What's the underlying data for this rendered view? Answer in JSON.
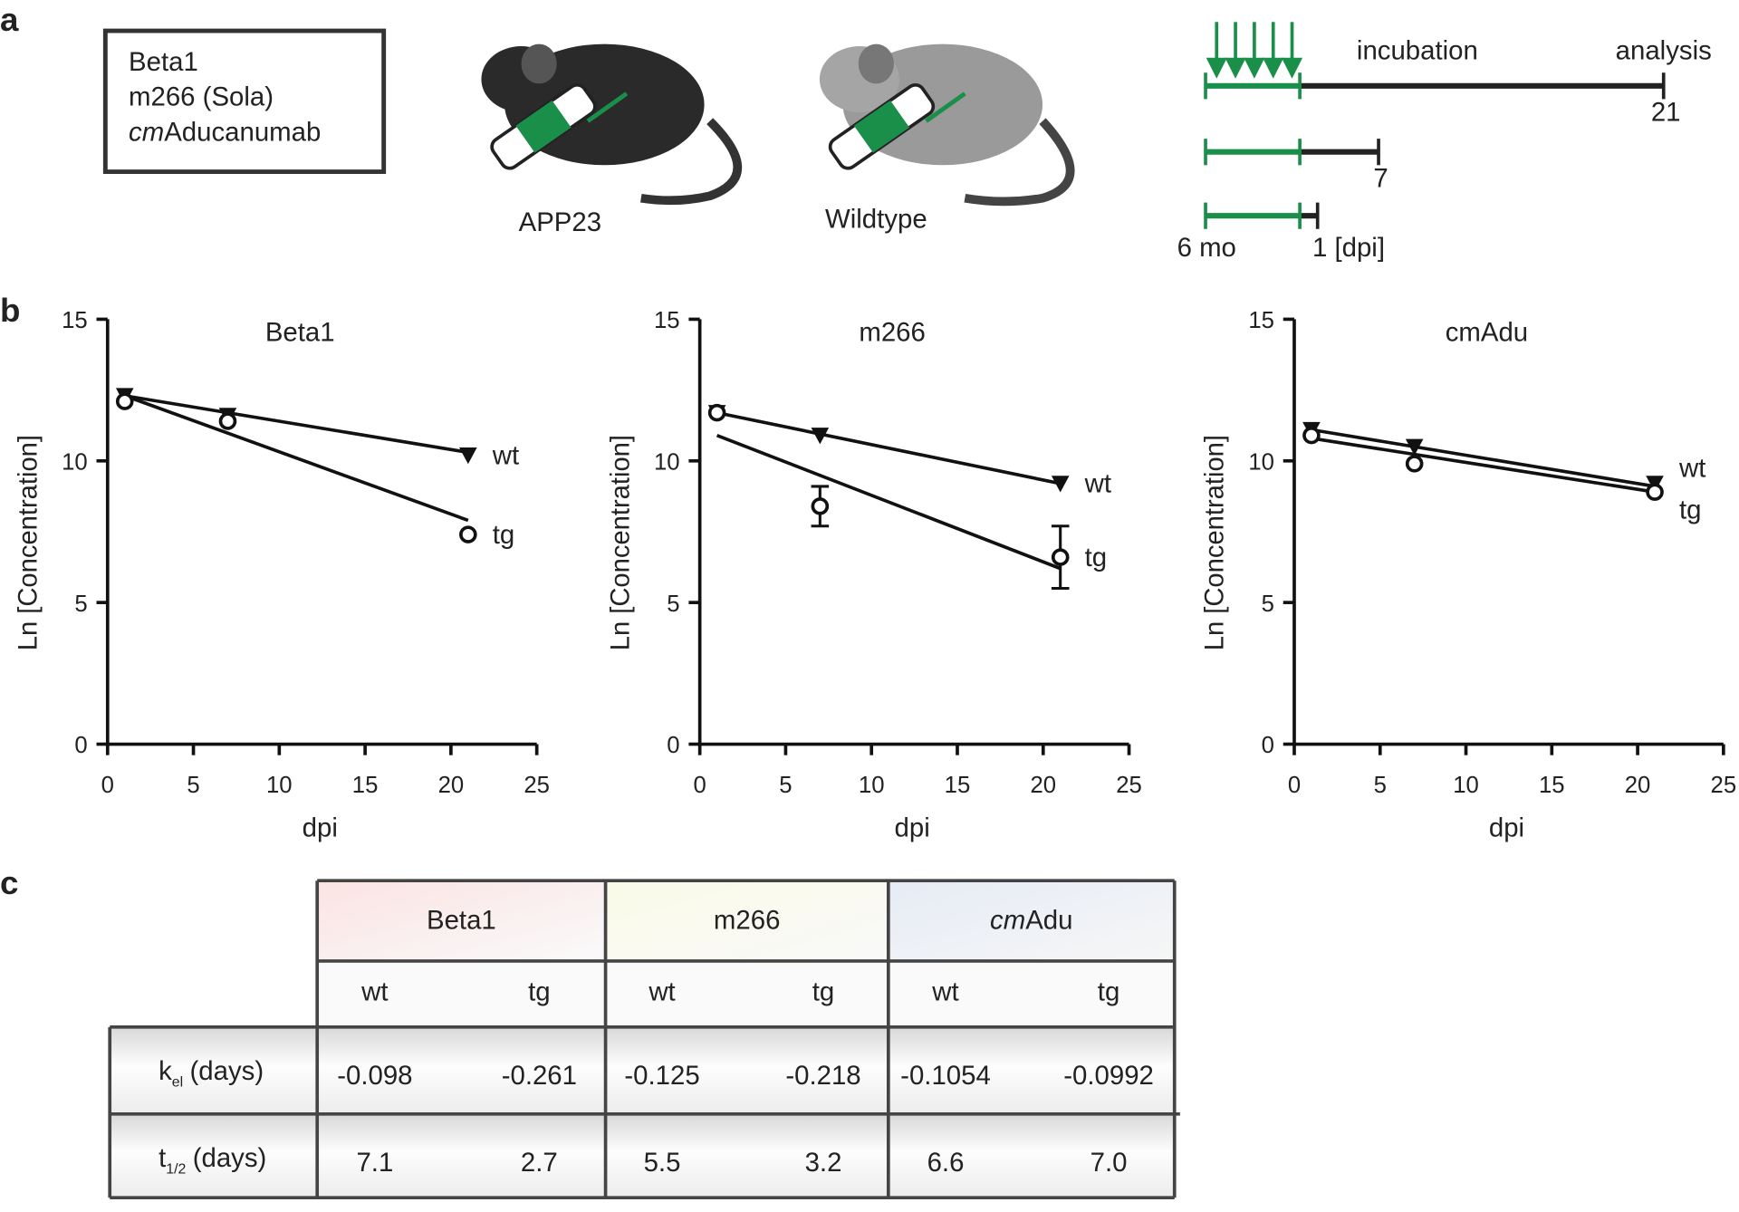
{
  "panel_labels": [
    "a",
    "b",
    "c"
  ],
  "antibodies": {
    "line1": "Beta1",
    "line2": "m266 (Sola)",
    "line3_italic": "cm",
    "line3_rest": "Aducanumab"
  },
  "mice": [
    "APP23",
    "Wildtype"
  ],
  "timeline": {
    "incubation": "incubation",
    "analysis": "analysis",
    "end21": "21",
    "end7": "7",
    "start": "6 mo",
    "end1": "1 [dpi]"
  },
  "chart_data": [
    {
      "type": "scatter",
      "title": "Beta1",
      "x_label": "dpi",
      "y_label": "Ln [Concentration]",
      "xlim": [
        0,
        25
      ],
      "xticks": [
        0,
        5,
        10,
        15,
        20,
        25
      ],
      "ylim": [
        0,
        15
      ],
      "yticks": [
        0,
        5,
        10,
        15
      ],
      "x": [
        1,
        7,
        21
      ],
      "fit_x": [
        1,
        21
      ],
      "series": [
        {
          "name": "wt",
          "color": "#111111",
          "marker": "triangle-down",
          "values": [
            12.3,
            11.6,
            10.2
          ],
          "fit": [
            12.3,
            10.3
          ]
        },
        {
          "name": "tg",
          "color": "#111111",
          "marker": "open-circle",
          "values": [
            12.1,
            11.4,
            7.4
          ],
          "fit": [
            12.3,
            7.9
          ]
        }
      ]
    },
    {
      "type": "scatter",
      "title": "m266",
      "x_label": "dpi",
      "y_label": "Ln [Concentration]",
      "xlim": [
        0,
        25
      ],
      "xticks": [
        0,
        5,
        10,
        15,
        20,
        25
      ],
      "ylim": [
        0,
        15
      ],
      "yticks": [
        0,
        5,
        10,
        15
      ],
      "x": [
        1,
        7,
        21
      ],
      "fit_x": [
        1,
        21
      ],
      "series": [
        {
          "name": "wt",
          "color": "#111111",
          "marker": "triangle-down",
          "values": [
            11.7,
            10.9,
            9.2
          ],
          "fit": [
            11.7,
            9.2
          ]
        },
        {
          "name": "tg",
          "color": "#111111",
          "marker": "open-circle",
          "values": [
            11.7,
            8.4,
            6.6
          ],
          "errors": [
            null,
            0.7,
            1.1
          ],
          "fit": [
            10.9,
            6.2
          ]
        }
      ]
    },
    {
      "type": "scatter",
      "title": "cmAdu",
      "x_label": "dpi",
      "y_label": "Ln [Concentration]",
      "xlim": [
        0,
        25
      ],
      "xticks": [
        0,
        5,
        10,
        15,
        20,
        25
      ],
      "ylim": [
        0,
        15
      ],
      "yticks": [
        0,
        5,
        10,
        15
      ],
      "x": [
        1,
        7,
        21
      ],
      "fit_x": [
        1,
        21
      ],
      "series": [
        {
          "name": "wt",
          "color": "#111111",
          "marker": "triangle-down",
          "values": [
            11.1,
            10.5,
            9.2
          ],
          "fit": [
            11.1,
            9.1
          ]
        },
        {
          "name": "tg",
          "color": "#111111",
          "marker": "open-circle",
          "values": [
            10.9,
            9.9,
            8.9
          ],
          "fit": [
            10.8,
            8.9
          ]
        }
      ]
    }
  ],
  "table": {
    "groups": [
      {
        "text": "Beta1"
      },
      {
        "text": "m266"
      },
      {
        "italic": "cm",
        "text": "Adu"
      }
    ],
    "subheaders": [
      "wt",
      "tg",
      "wt",
      "tg",
      "wt",
      "tg"
    ],
    "rows": [
      {
        "symbol": "k",
        "sub": "el",
        "unit": "(days)",
        "cells": [
          "-0.098",
          "-0.261",
          "-0.125",
          "-0.218",
          "-0.1054",
          "-0.0992"
        ]
      },
      {
        "symbol": "t",
        "sub": "1/2",
        "unit": "(days)",
        "cells": [
          "7.1",
          "2.7",
          "5.5",
          "3.2",
          "6.6",
          "7.0"
        ]
      }
    ]
  }
}
